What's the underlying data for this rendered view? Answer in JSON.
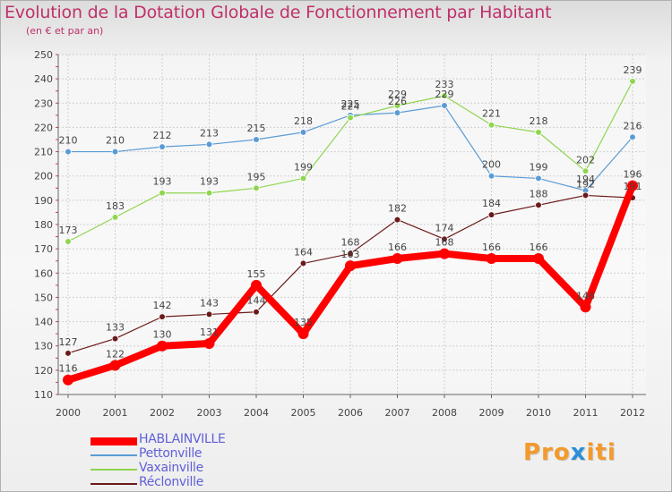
{
  "title": "Evolution de la Dotation Globale de Fonctionnement par Habitant",
  "subtitle": "(en € et par an)",
  "brand": {
    "part1": "Pro",
    "part2": "x",
    "part3": "iti"
  },
  "colors": {
    "title": "#c0306a",
    "legend_text": "#6060d8",
    "hablainville": "#ff0000",
    "pettonville": "#5a9bd5",
    "vaxainville": "#8fd650",
    "reclonville": "#6b1a1a"
  },
  "chart_data": {
    "type": "line",
    "title": "Evolution de la Dotation Globale de Fonctionnement par Habitant",
    "ylabel": "(en € et par an)",
    "xlabel": "",
    "categories": [
      "2000",
      "2001",
      "2002",
      "2003",
      "2004",
      "2005",
      "2006",
      "2007",
      "2008",
      "2009",
      "2010",
      "2011",
      "2012"
    ],
    "ylim": [
      110,
      250
    ],
    "yticks": [
      110,
      120,
      130,
      140,
      150,
      160,
      170,
      180,
      190,
      200,
      210,
      220,
      230,
      240,
      250
    ],
    "grid": true,
    "legend_position": "bottom-left",
    "series": [
      {
        "name": "HABLAINVILLE",
        "color": "#ff0000",
        "emphasis": true,
        "values": [
          116,
          122,
          130,
          131,
          155,
          135,
          163,
          166,
          168,
          166,
          166,
          146,
          196
        ]
      },
      {
        "name": "Pettonville",
        "color": "#5a9bd5",
        "emphasis": false,
        "values": [
          210,
          210,
          212,
          213,
          215,
          218,
          225,
          226,
          229,
          200,
          199,
          194,
          216
        ]
      },
      {
        "name": "Vaxainville",
        "color": "#8fd650",
        "emphasis": false,
        "values": [
          173,
          183,
          193,
          193,
          195,
          199,
          224,
          229,
          233,
          221,
          218,
          202,
          239
        ]
      },
      {
        "name": "Réclonville",
        "color": "#6b1a1a",
        "emphasis": false,
        "values": [
          127,
          133,
          142,
          143,
          144,
          164,
          168,
          182,
          174,
          184,
          188,
          192,
          191
        ]
      }
    ]
  }
}
